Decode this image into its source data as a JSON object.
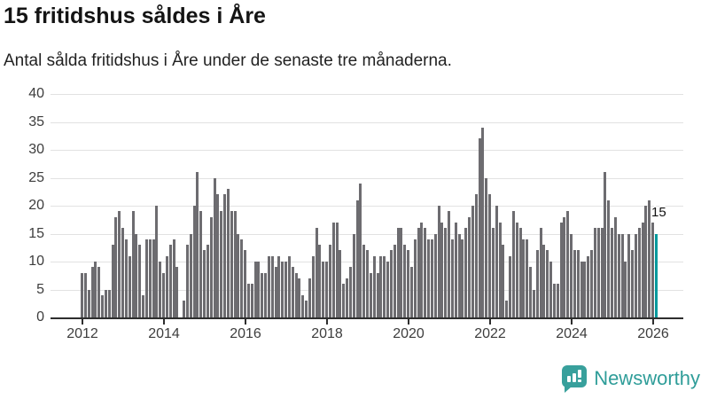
{
  "header": {
    "title": "15 fritidshus såldes i Åre",
    "subtitle": "Antal sålda fritidshus i Åre under de senaste tre månaderna."
  },
  "chart_data": {
    "type": "bar",
    "title": "15 fritidshus såldes i Åre",
    "subtitle": "Antal sålda fritidshus i Åre under de senaste tre månaderna.",
    "frequency": "monthly",
    "x_start": "2012-01",
    "x_end": "2026-02",
    "ylim": [
      0,
      40
    ],
    "grid": "horizontal",
    "y_ticks": [
      0,
      5,
      10,
      15,
      20,
      25,
      30,
      35,
      40
    ],
    "x_tick_labels": [
      "2012",
      "2014",
      "2016",
      "2018",
      "2020",
      "2022",
      "2024",
      "2026"
    ],
    "bar_color": "#6d6c70",
    "series": [
      {
        "name": "Antal sålda fritidshus, rullande tre månader",
        "values": [
          8,
          8,
          5,
          9,
          10,
          9,
          4,
          5,
          5,
          13,
          18,
          19,
          16,
          14,
          11,
          19,
          15,
          13,
          4,
          14,
          14,
          14,
          20,
          10,
          8,
          11,
          13,
          14,
          9,
          0,
          3,
          13,
          15,
          20,
          26,
          19,
          12,
          13,
          18,
          25,
          22,
          19,
          22,
          23,
          19,
          19,
          15,
          14,
          12,
          6,
          6,
          10,
          10,
          8,
          8,
          11,
          11,
          9,
          11,
          10,
          10,
          11,
          9,
          8,
          7,
          4,
          3,
          7,
          11,
          16,
          13,
          10,
          10,
          13,
          17,
          17,
          12,
          6,
          7,
          9,
          15,
          21,
          24,
          13,
          12,
          8,
          11,
          8,
          11,
          11,
          10,
          12,
          13,
          16,
          16,
          13,
          12,
          9,
          14,
          16,
          17,
          16,
          14,
          14,
          15,
          20,
          17,
          16,
          19,
          14,
          17,
          15,
          14,
          16,
          18,
          20,
          22,
          32,
          34,
          25,
          22,
          16,
          20,
          17,
          13,
          3,
          11,
          19,
          17,
          16,
          14,
          14,
          9,
          5,
          12,
          16,
          13,
          12,
          10,
          6,
          6,
          17,
          18,
          19,
          15,
          12,
          12,
          10,
          10,
          11,
          12,
          16,
          16,
          16,
          26,
          21,
          16,
          18,
          15,
          15,
          10,
          15,
          12,
          15,
          16,
          17,
          20,
          21,
          17,
          15
        ]
      }
    ],
    "highlight": {
      "index": 169,
      "value": 15,
      "label": "15",
      "color": "#009a9e"
    }
  },
  "footer": {
    "brand": "Newsworthy",
    "brand_color": "#2f9d99",
    "icon": "newsworthy-chart-bubble-icon"
  }
}
